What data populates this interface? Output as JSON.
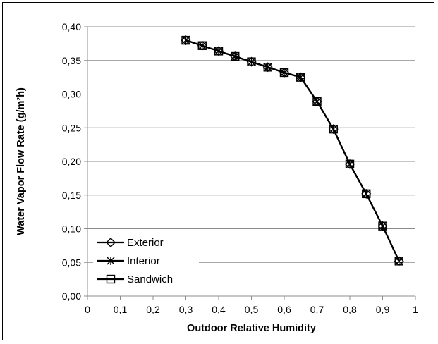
{
  "chart_data": {
    "type": "line",
    "xlabel": "Outdoor Relative Humidity",
    "ylabel": "Water Vapor Flow Rate (g/m²h)",
    "xlim": [
      0,
      1
    ],
    "ylim": [
      0,
      0.4
    ],
    "x_ticks": [
      "0",
      "0,1",
      "0,2",
      "0,3",
      "0,4",
      "0,5",
      "0,6",
      "0,7",
      "0,8",
      "0,9",
      "1"
    ],
    "y_ticks": [
      "0,00",
      "0,05",
      "0,10",
      "0,15",
      "0,20",
      "0,25",
      "0,30",
      "0,35",
      "0,40"
    ],
    "grid": "horizontal",
    "legend_position": "bottom-left",
    "x": [
      0.3,
      0.35,
      0.4,
      0.45,
      0.5,
      0.55,
      0.6,
      0.65,
      0.7,
      0.75,
      0.8,
      0.85,
      0.9,
      0.95
    ],
    "series": [
      {
        "name": "Exterior",
        "marker": "diamond",
        "values": [
          0.38,
          0.372,
          0.364,
          0.356,
          0.348,
          0.34,
          0.332,
          0.325,
          0.289,
          0.248,
          0.196,
          0.152,
          0.104,
          0.052
        ]
      },
      {
        "name": "Interior",
        "marker": "asterisk",
        "values": [
          0.38,
          0.372,
          0.364,
          0.356,
          0.348,
          0.34,
          0.332,
          0.325,
          0.289,
          0.248,
          0.196,
          0.152,
          0.104,
          0.052
        ]
      },
      {
        "name": "Sandwich",
        "marker": "square",
        "values": [
          0.38,
          0.372,
          0.364,
          0.356,
          0.348,
          0.34,
          0.332,
          0.325,
          0.289,
          0.248,
          0.196,
          0.152,
          0.104,
          0.052
        ]
      }
    ]
  }
}
